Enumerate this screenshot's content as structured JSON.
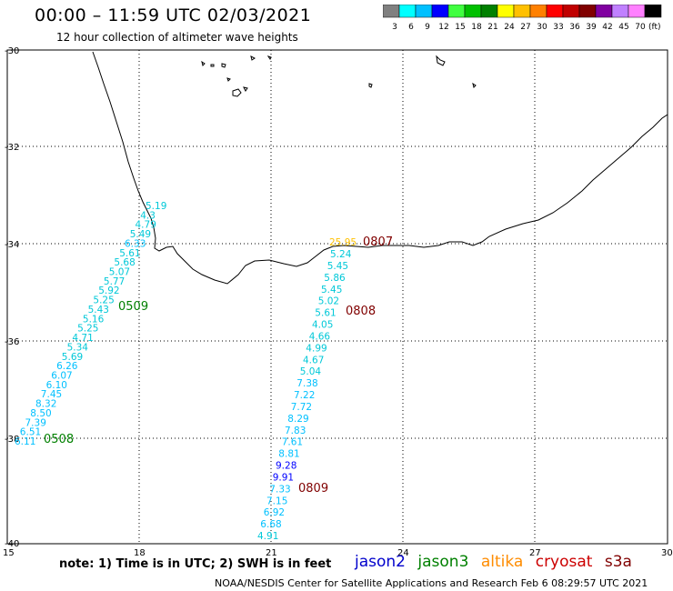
{
  "header": {
    "title": "00:00 – 11:59 UTC 02/03/2021",
    "subtitle": "12 hour collection of altimeter wave heights"
  },
  "colorbar": {
    "colors": [
      "#808080",
      "#00ffff",
      "#00c0ff",
      "#0000ff",
      "#40ff40",
      "#00c000",
      "#008000",
      "#ffff00",
      "#ffc000",
      "#ff8000",
      "#ff0000",
      "#c00000",
      "#800000",
      "#8000a0",
      "#c080ff",
      "#ff80ff",
      "#000000"
    ],
    "labels": [
      "3",
      "6",
      "9",
      "12",
      "15",
      "18",
      "21",
      "24",
      "27",
      "30",
      "33",
      "36",
      "39",
      "42",
      "45",
      "70"
    ],
    "unit": "(ft)"
  },
  "axes": {
    "lat_labels": [
      "-30",
      "-32",
      "-34",
      "-36",
      "-38",
      "-40"
    ],
    "lon_labels": [
      "15",
      "18",
      "21",
      "24",
      "27",
      "30"
    ]
  },
  "passes": [
    {
      "id": "pass-0509",
      "label": "0509",
      "color": "#008000",
      "text_color": "#00c8d8",
      "values": [
        "5.19",
        "4.3",
        "4.79",
        "5.49",
        "6.33",
        "5.61",
        "5.68",
        "5.07",
        "5.77",
        "5.92",
        "5.25",
        "5.43",
        "5.16",
        "5.25",
        "4.71",
        "5.34",
        "5.69",
        "6.26",
        "6.07",
        "6.10",
        "7.45",
        "8.32",
        "8.50",
        "7.39",
        "6.51",
        "6.11"
      ]
    },
    {
      "id": "pass-0508",
      "label": "0508",
      "color": "#008000"
    },
    {
      "id": "pass-0807",
      "label": "0807",
      "color": "#800000",
      "values": [
        "25.95"
      ]
    },
    {
      "id": "pass-0808",
      "label": "0808",
      "color": "#800000",
      "text_color": "#00c8d8",
      "values": [
        "5.24",
        "5.45",
        "5.86",
        "5.45",
        "5.02",
        "5.61",
        "4.05",
        "4.66",
        "4.99",
        "4.67",
        "5.04",
        "7.38",
        "7.22",
        "7.72",
        "8.29",
        "7.83",
        "7.61",
        "8.81",
        "9.28",
        "9.91",
        "7.33",
        "7.15",
        "6.92",
        "6.68",
        "4.91"
      ]
    },
    {
      "id": "pass-0809",
      "label": "0809",
      "color": "#800000"
    }
  ],
  "legend": {
    "note": "note: 1) Time is in UTC; 2) SWH is in feet",
    "items": [
      {
        "label": "jason2",
        "color": "#0000cc"
      },
      {
        "label": "jason3",
        "color": "#008000"
      },
      {
        "label": "altika",
        "color": "#ff8c00"
      },
      {
        "label": "cryosat",
        "color": "#cc0000"
      },
      {
        "label": "s3a",
        "color": "#800000"
      }
    ]
  },
  "footer": "NOAA/NESDIS Center for Satellite Applications and Research   Feb  6 08:29:57 UTC 2021"
}
